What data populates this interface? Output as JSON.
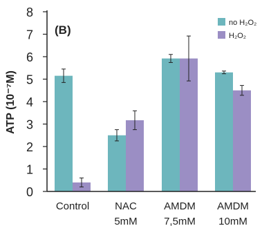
{
  "chart_data": {
    "type": "bar",
    "panel_label": "(B)",
    "ylabel": "ATP (10⁻⁷M)",
    "ylim": [
      0,
      8
    ],
    "yticks": [
      "0",
      "1",
      "2",
      "3",
      "4",
      "5",
      "6",
      "7",
      "8"
    ],
    "grid": false,
    "legend_position": "top-right",
    "categories": [
      [
        "Control"
      ],
      [
        "NAC",
        "5mM"
      ],
      [
        "AMDM",
        "7,5mM"
      ],
      [
        "AMDM",
        "10mM"
      ]
    ],
    "series": [
      {
        "name": "no H₂O₂",
        "color": "#6db6bd",
        "values": [
          5.15,
          2.5,
          5.92,
          5.3
        ],
        "errors": [
          0.3,
          0.25,
          0.18,
          0.06
        ]
      },
      {
        "name": "H₂O₂",
        "color": "#9b8ec4",
        "values": [
          0.4,
          3.17,
          5.92,
          4.5
        ],
        "errors": [
          0.2,
          0.42,
          1.0,
          0.22
        ]
      }
    ]
  }
}
